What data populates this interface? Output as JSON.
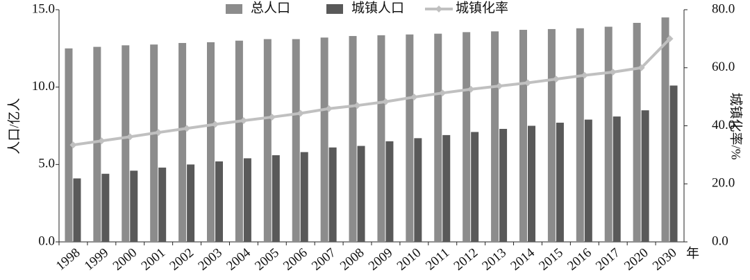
{
  "chart_data": {
    "type": "bar_line",
    "categories": [
      "1998",
      "1999",
      "2000",
      "2001",
      "2002",
      "2003",
      "2004",
      "2005",
      "2006",
      "2007",
      "2008",
      "2009",
      "2010",
      "2011",
      "2012",
      "2013",
      "2014",
      "2015",
      "2016",
      "2017",
      "2020",
      "2030"
    ],
    "x_label": "年",
    "y_label": "人口/亿人",
    "y2_label": "城镇化率/%",
    "series": [
      {
        "name": "总人口",
        "color": "#8c8c8c",
        "type": "bar",
        "values": [
          12.5,
          12.6,
          12.7,
          12.75,
          12.85,
          12.9,
          13.0,
          13.1,
          13.1,
          13.2,
          13.3,
          13.35,
          13.4,
          13.45,
          13.55,
          13.6,
          13.7,
          13.75,
          13.8,
          13.9,
          14.15,
          14.5
        ]
      },
      {
        "name": "城镇人口",
        "color": "#595959",
        "type": "bar",
        "values": [
          4.1,
          4.4,
          4.6,
          4.8,
          5.0,
          5.2,
          5.4,
          5.6,
          5.8,
          6.1,
          6.2,
          6.5,
          6.7,
          6.9,
          7.1,
          7.3,
          7.5,
          7.7,
          7.9,
          8.1,
          8.5,
          10.1
        ]
      },
      {
        "name": "城镇化率",
        "color": "#c0c0c0",
        "type": "line",
        "axis": "y2",
        "values": [
          33.4,
          34.8,
          36.2,
          37.7,
          39.1,
          40.5,
          41.8,
          43.0,
          44.3,
          45.9,
          47.0,
          48.3,
          49.9,
          51.3,
          52.6,
          53.7,
          54.8,
          56.1,
          57.4,
          58.5,
          60.0,
          70.0
        ]
      }
    ],
    "ylim": [
      0,
      15
    ],
    "yticks": [
      {
        "value": 0,
        "label": "0.0"
      },
      {
        "value": 5,
        "label": "5.0"
      },
      {
        "value": 10,
        "label": "10.0"
      },
      {
        "value": 15,
        "label": "15.0"
      }
    ],
    "y2lim": [
      0,
      80
    ],
    "y2ticks": [
      {
        "value": 0,
        "label": "0.0"
      },
      {
        "value": 20,
        "label": "20.0"
      },
      {
        "value": 40,
        "label": "40.0"
      },
      {
        "value": 60,
        "label": "60.0"
      },
      {
        "value": 80,
        "label": "80.0"
      }
    ],
    "grid": false,
    "legend": "top"
  }
}
